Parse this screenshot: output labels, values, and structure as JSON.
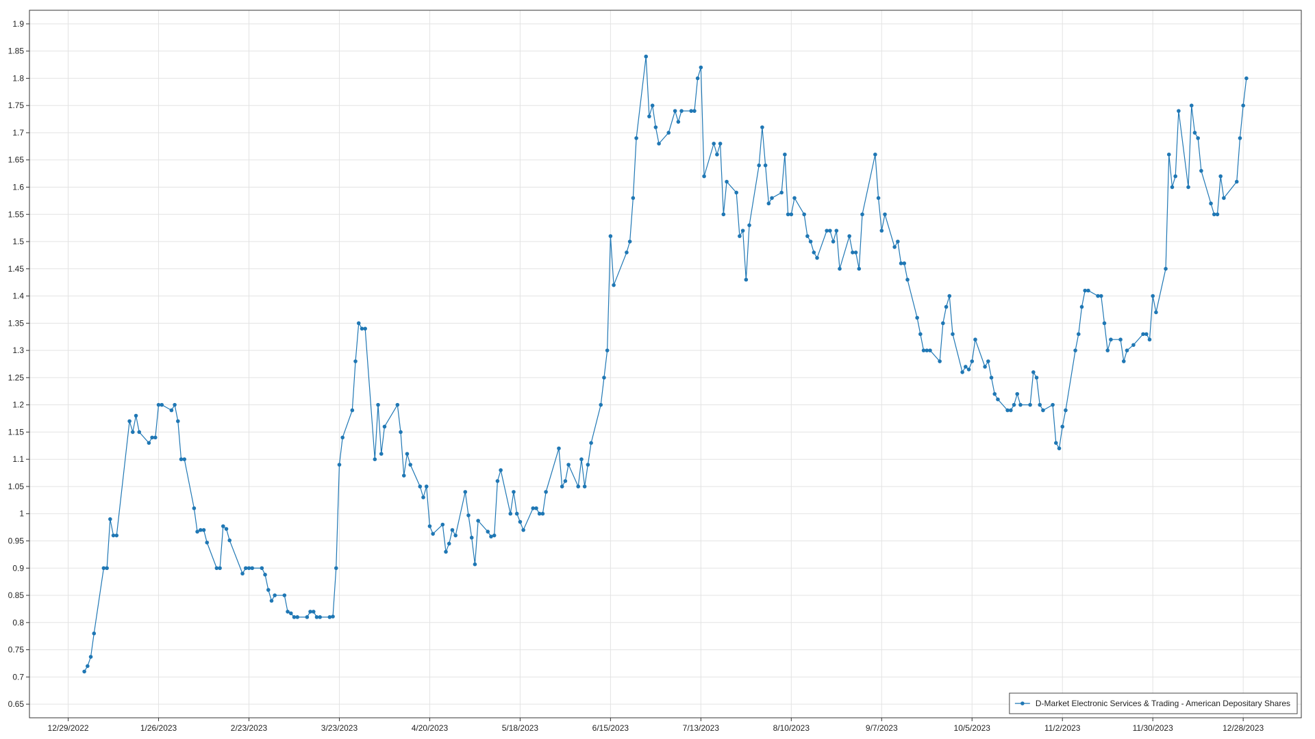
{
  "chart_data": {
    "type": "line",
    "x": [
      "1/3/2023",
      "1/4/2023",
      "1/5/2023",
      "1/6/2023",
      "1/9/2023",
      "1/10/2023",
      "1/11/2023",
      "1/12/2023",
      "1/13/2023",
      "1/17/2023",
      "1/18/2023",
      "1/19/2023",
      "1/20/2023",
      "1/23/2023",
      "1/24/2023",
      "1/25/2023",
      "1/26/2023",
      "1/27/2023",
      "1/30/2023",
      "1/31/2023",
      "2/1/2023",
      "2/2/2023",
      "2/3/2023",
      "2/6/2023",
      "2/7/2023",
      "2/8/2023",
      "2/9/2023",
      "2/10/2023",
      "2/13/2023",
      "2/14/2023",
      "2/15/2023",
      "2/16/2023",
      "2/17/2023",
      "2/21/2023",
      "2/22/2023",
      "2/23/2023",
      "2/24/2023",
      "2/27/2023",
      "2/28/2023",
      "3/1/2023",
      "3/2/2023",
      "3/3/2023",
      "3/6/2023",
      "3/7/2023",
      "3/8/2023",
      "3/9/2023",
      "3/10/2023",
      "3/13/2023",
      "3/14/2023",
      "3/15/2023",
      "3/16/2023",
      "3/17/2023",
      "3/20/2023",
      "3/21/2023",
      "3/22/2023",
      "3/23/2023",
      "3/24/2023",
      "3/27/2023",
      "3/28/2023",
      "3/29/2023",
      "3/30/2023",
      "3/31/2023",
      "4/3/2023",
      "4/4/2023",
      "4/5/2023",
      "4/6/2023",
      "4/10/2023",
      "4/11/2023",
      "4/12/2023",
      "4/13/2023",
      "4/14/2023",
      "4/17/2023",
      "4/18/2023",
      "4/19/2023",
      "4/20/2023",
      "4/21/2023",
      "4/24/2023",
      "4/25/2023",
      "4/26/2023",
      "4/27/2023",
      "4/28/2023",
      "5/1/2023",
      "5/2/2023",
      "5/3/2023",
      "5/4/2023",
      "5/5/2023",
      "5/8/2023",
      "5/9/2023",
      "5/10/2023",
      "5/11/2023",
      "5/12/2023",
      "5/15/2023",
      "5/16/2023",
      "5/17/2023",
      "5/18/2023",
      "5/19/2023",
      "5/22/2023",
      "5/23/2023",
      "5/24/2023",
      "5/25/2023",
      "5/26/2023",
      "5/30/2023",
      "5/31/2023",
      "6/1/2023",
      "6/2/2023",
      "6/5/2023",
      "6/6/2023",
      "6/7/2023",
      "6/8/2023",
      "6/9/2023",
      "6/12/2023",
      "6/13/2023",
      "6/14/2023",
      "6/15/2023",
      "6/16/2023",
      "6/20/2023",
      "6/21/2023",
      "6/22/2023",
      "6/23/2023",
      "6/26/2023",
      "6/27/2023",
      "6/28/2023",
      "6/29/2023",
      "6/30/2023",
      "7/3/2023",
      "7/5/2023",
      "7/6/2023",
      "7/7/2023",
      "7/10/2023",
      "7/11/2023",
      "7/12/2023",
      "7/13/2023",
      "7/14/2023",
      "7/17/2023",
      "7/18/2023",
      "7/19/2023",
      "7/20/2023",
      "7/21/2023",
      "7/24/2023",
      "7/25/2023",
      "7/26/2023",
      "7/27/2023",
      "7/28/2023",
      "7/31/2023",
      "8/1/2023",
      "8/2/2023",
      "8/3/2023",
      "8/4/2023",
      "8/7/2023",
      "8/8/2023",
      "8/9/2023",
      "8/10/2023",
      "8/11/2023",
      "8/14/2023",
      "8/15/2023",
      "8/16/2023",
      "8/17/2023",
      "8/18/2023",
      "8/21/2023",
      "8/22/2023",
      "8/23/2023",
      "8/24/2023",
      "8/25/2023",
      "8/28/2023",
      "8/29/2023",
      "8/30/2023",
      "8/31/2023",
      "9/1/2023",
      "9/5/2023",
      "9/6/2023",
      "9/7/2023",
      "9/8/2023",
      "9/11/2023",
      "9/12/2023",
      "9/13/2023",
      "9/14/2023",
      "9/15/2023",
      "9/18/2023",
      "9/19/2023",
      "9/20/2023",
      "9/21/2023",
      "9/22/2023",
      "9/25/2023",
      "9/26/2023",
      "9/27/2023",
      "9/28/2023",
      "9/29/2023",
      "10/2/2023",
      "10/3/2023",
      "10/4/2023",
      "10/5/2023",
      "10/6/2023",
      "10/9/2023",
      "10/10/2023",
      "10/11/2023",
      "10/12/2023",
      "10/13/2023",
      "10/16/2023",
      "10/17/2023",
      "10/18/2023",
      "10/19/2023",
      "10/20/2023",
      "10/23/2023",
      "10/24/2023",
      "10/25/2023",
      "10/26/2023",
      "10/27/2023",
      "10/30/2023",
      "10/31/2023",
      "11/1/2023",
      "11/2/2023",
      "11/3/2023",
      "11/6/2023",
      "11/7/2023",
      "11/8/2023",
      "11/9/2023",
      "11/10/2023",
      "11/13/2023",
      "11/14/2023",
      "11/15/2023",
      "11/16/2023",
      "11/17/2023",
      "11/20/2023",
      "11/21/2023",
      "11/22/2023",
      "11/24/2023",
      "11/27/2023",
      "11/28/2023",
      "11/29/2023",
      "11/30/2023",
      "12/1/2023",
      "12/4/2023",
      "12/5/2023",
      "12/6/2023",
      "12/7/2023",
      "12/8/2023",
      "12/11/2023",
      "12/12/2023",
      "12/13/2023",
      "12/14/2023",
      "12/15/2023",
      "12/18/2023",
      "12/19/2023",
      "12/20/2023",
      "12/21/2023",
      "12/22/2023",
      "12/26/2023",
      "12/27/2023",
      "12/28/2023",
      "12/29/2023"
    ],
    "series": [
      {
        "name": "D-Market Electronic Services & Trading - American Depositary Shares",
        "color": "#1f77b4",
        "values": [
          0.71,
          0.72,
          0.737,
          0.78,
          0.9,
          0.9,
          0.99,
          0.96,
          0.96,
          1.17,
          1.15,
          1.18,
          1.15,
          1.13,
          1.14,
          1.14,
          1.2,
          1.2,
          1.19,
          1.2,
          1.17,
          1.1,
          1.1,
          1.01,
          0.967,
          0.97,
          0.97,
          0.947,
          0.9,
          0.9,
          0.977,
          0.972,
          0.951,
          0.89,
          0.9,
          0.9,
          0.9,
          0.9,
          0.888,
          0.86,
          0.84,
          0.85,
          0.85,
          0.82,
          0.817,
          0.81,
          0.81,
          0.81,
          0.82,
          0.82,
          0.81,
          0.81,
          0.81,
          0.811,
          0.9,
          1.09,
          1.14,
          1.19,
          1.28,
          1.35,
          1.34,
          1.34,
          1.1,
          1.2,
          1.11,
          1.16,
          1.2,
          1.15,
          1.07,
          1.11,
          1.09,
          1.05,
          1.03,
          1.05,
          0.977,
          0.963,
          0.98,
          0.93,
          0.945,
          0.97,
          0.96,
          1.04,
          0.997,
          0.956,
          0.907,
          0.987,
          0.967,
          0.958,
          0.96,
          1.06,
          1.08,
          1,
          1.04,
          1,
          0.985,
          0.97,
          1.01,
          1.01,
          1,
          1,
          1.04,
          1.12,
          1.05,
          1.06,
          1.09,
          1.05,
          1.1,
          1.05,
          1.09,
          1.13,
          1.2,
          1.25,
          1.3,
          1.51,
          1.42,
          1.48,
          1.5,
          1.58,
          1.69,
          1.84,
          1.73,
          1.75,
          1.71,
          1.68,
          1.7,
          1.74,
          1.72,
          1.74,
          1.74,
          1.74,
          1.8,
          1.82,
          1.62,
          1.68,
          1.66,
          1.68,
          1.55,
          1.61,
          1.59,
          1.51,
          1.52,
          1.43,
          1.53,
          1.64,
          1.71,
          1.64,
          1.57,
          1.58,
          1.59,
          1.66,
          1.55,
          1.55,
          1.58,
          1.55,
          1.51,
          1.5,
          1.48,
          1.47,
          1.52,
          1.52,
          1.5,
          1.52,
          1.45,
          1.51,
          1.48,
          1.48,
          1.45,
          1.55,
          1.66,
          1.58,
          1.52,
          1.55,
          1.49,
          1.5,
          1.46,
          1.46,
          1.43,
          1.36,
          1.33,
          1.3,
          1.3,
          1.3,
          1.28,
          1.35,
          1.38,
          1.4,
          1.33,
          1.26,
          1.27,
          1.265,
          1.28,
          1.32,
          1.27,
          1.28,
          1.25,
          1.22,
          1.21,
          1.19,
          1.19,
          1.2,
          1.22,
          1.2,
          1.2,
          1.26,
          1.25,
          1.2,
          1.19,
          1.2,
          1.13,
          1.12,
          1.16,
          1.19,
          1.3,
          1.33,
          1.38,
          1.41,
          1.41,
          1.4,
          1.4,
          1.35,
          1.3,
          1.32,
          1.32,
          1.28,
          1.3,
          1.31,
          1.33,
          1.33,
          1.32,
          1.4,
          1.37,
          1.45,
          1.66,
          1.6,
          1.62,
          1.74,
          1.6,
          1.75,
          1.7,
          1.69,
          1.63,
          1.57,
          1.55,
          1.55,
          1.62,
          1.58,
          1.61,
          1.69,
          1.75,
          1.8
        ]
      }
    ],
    "xlim": [
      "12/17/2022",
      "1/15/2024"
    ],
    "xticks": [
      "12/29/2022",
      "1/26/2023",
      "2/23/2023",
      "3/23/2023",
      "4/20/2023",
      "5/18/2023",
      "6/15/2023",
      "7/13/2023",
      "8/10/2023",
      "9/7/2023",
      "10/5/2023",
      "11/2/2023",
      "11/30/2023",
      "12/28/2023"
    ],
    "ylim": [
      0.625,
      1.925
    ],
    "yticks": [
      0.65,
      0.7,
      0.75,
      0.8,
      0.85,
      0.9,
      0.95,
      1,
      1.05,
      1.1,
      1.15,
      1.2,
      1.25,
      1.3,
      1.35,
      1.4,
      1.45,
      1.5,
      1.55,
      1.6,
      1.65,
      1.7,
      1.75,
      1.8,
      1.85,
      1.9
    ],
    "grid": true,
    "legend": "lower right"
  }
}
